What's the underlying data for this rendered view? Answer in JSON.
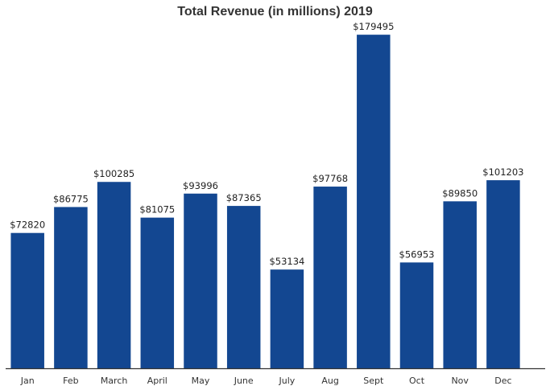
{
  "chart_data": {
    "type": "bar",
    "title": "Total Revenue (in millions) 2019",
    "xlabel": "",
    "ylabel": "",
    "categories": [
      "Jan",
      "Feb",
      "March",
      "April",
      "May",
      "June",
      "July",
      "Aug",
      "Sept",
      "Oct",
      "Nov",
      "Dec"
    ],
    "values": [
      72820,
      86775,
      100285,
      81075,
      93996,
      87365,
      53134,
      97768,
      179495,
      56953,
      89850,
      101203
    ],
    "data_labels": [
      "$72820",
      "$86775",
      "$100285",
      "$81075",
      "$93996",
      "$87365",
      "$53134",
      "$97768",
      "$179495",
      "$56953",
      "$89850",
      "$101203"
    ],
    "ylim": [
      0,
      180000
    ],
    "grid": false,
    "legend": "none",
    "y_axis_visible": false,
    "bar_color": "#134791",
    "axis_color": "#333333"
  }
}
